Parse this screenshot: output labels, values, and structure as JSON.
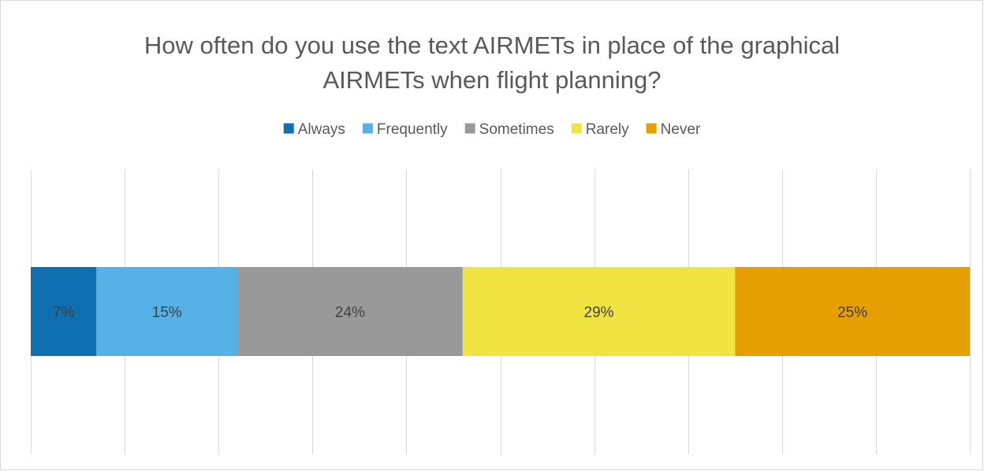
{
  "chart_data": {
    "type": "bar",
    "orientation": "horizontal",
    "stacked": "100%",
    "title_lines": [
      "How often do you use the text AIRMETs in place of the graphical",
      "AIRMETs when flight planning?"
    ],
    "categories": [
      ""
    ],
    "series": [
      {
        "name": "Always",
        "values": [
          7
        ],
        "label": "7%",
        "color": "#0f6fb0"
      },
      {
        "name": "Frequently",
        "values": [
          15
        ],
        "label": "15%",
        "color": "#56b1e6"
      },
      {
        "name": "Sometimes",
        "values": [
          24
        ],
        "label": "24%",
        "color": "#999999"
      },
      {
        "name": "Rarely",
        "values": [
          29
        ],
        "label": "29%",
        "color": "#f0e442"
      },
      {
        "name": "Never",
        "values": [
          25
        ],
        "label": "25%",
        "color": "#e69f00"
      }
    ],
    "xlim": [
      0,
      100
    ],
    "grid": true,
    "legend_position": "top",
    "colors": {
      "grid": "#d9d9d9",
      "title": "#595959",
      "label": "#404040"
    }
  }
}
